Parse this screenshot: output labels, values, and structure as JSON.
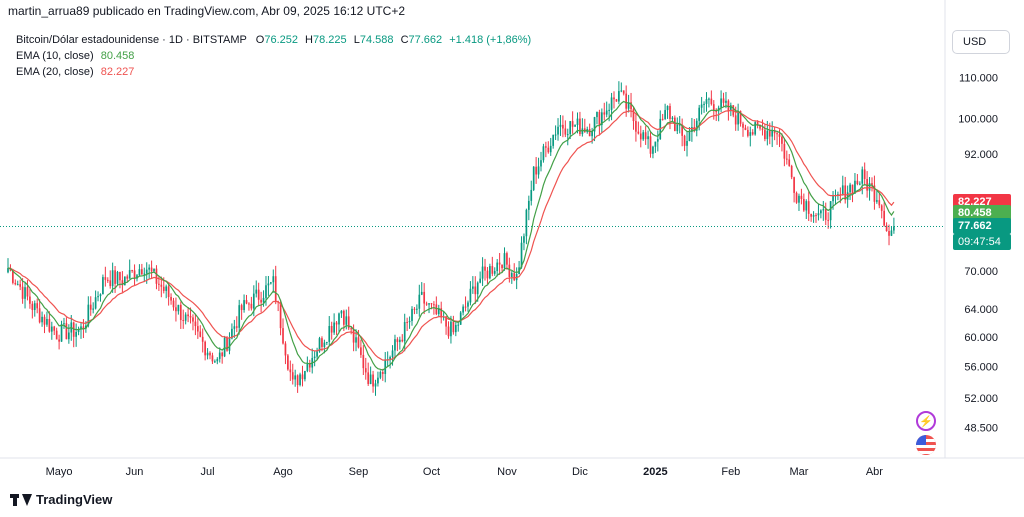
{
  "header": {
    "publisher": "martin_arrua89 publicado en TradingView.com, Abr 09, 2025 16:12 UTC+2"
  },
  "legend": {
    "symbol": "Bitcoin/Dólar estadounidense · 1D · BITSTAMP",
    "open_label": "O",
    "open": "76.252",
    "high_label": "H",
    "high": "78.225",
    "low_label": "L",
    "low": "74.588",
    "close_label": "C",
    "close": "77.662",
    "change": "+1.418 (+1,86%)",
    "ema10_label": "EMA (10, close)",
    "ema10_value": "80.458",
    "ema20_label": "EMA (20, close)",
    "ema20_value": "82.227"
  },
  "currency_button": "USD",
  "price_tags": {
    "ema20": "82.227",
    "ema10": "80.458",
    "last": "77.662",
    "countdown": "09:47:54"
  },
  "footer": {
    "brand": "TradingView"
  },
  "colors": {
    "up": "#089981",
    "down": "#f23645",
    "ema10": "#43a047",
    "ema20": "#ef5350",
    "ema20_tag": "#f23645",
    "ema10_tag": "#4caf50",
    "last_tag": "#089981"
  },
  "icons": {
    "flash": "flash-icon",
    "flag": "us-flag-icon",
    "logo": "tradingview-logo-icon"
  },
  "chart_data": {
    "type": "candlestick",
    "scale": "log",
    "y_ticks": [
      110000,
      100000,
      92000,
      70000,
      64000,
      60000,
      56000,
      52000,
      48500
    ],
    "y_tick_labels": [
      "110.000",
      "100.000",
      "92.000",
      "70.000",
      "64.000",
      "60.000",
      "56.000",
      "52.000",
      "48.500"
    ],
    "ylim": [
      45500,
      116000
    ],
    "x_labels": [
      "Mayo",
      "Jun",
      "Jul",
      "Ago",
      "Sep",
      "Oct",
      "Nov",
      "Dic",
      "2025",
      "Feb",
      "Mar",
      "Abr"
    ],
    "x_label_dates": [
      "2024-05-01",
      "2024-06-01",
      "2024-07-01",
      "2024-08-01",
      "2024-09-01",
      "2024-10-01",
      "2024-11-01",
      "2024-12-01",
      "2025-01-01",
      "2025-02-01",
      "2025-03-01",
      "2025-04-01"
    ],
    "xlim": [
      "2024-04-10",
      "2025-04-30"
    ],
    "last_date": "2025-04-09",
    "last_price": 77662,
    "ema10_last": 80458,
    "ema20_last": 82227,
    "closes_approx": [
      [
        "2024-04-10",
        70500
      ],
      [
        "2024-04-20",
        64500
      ],
      [
        "2024-04-30",
        60500
      ],
      [
        "2024-05-10",
        61000
      ],
      [
        "2024-05-20",
        69000
      ],
      [
        "2024-05-27",
        68500
      ],
      [
        "2024-06-05",
        71000
      ],
      [
        "2024-06-15",
        66000
      ],
      [
        "2024-06-25",
        61000
      ],
      [
        "2024-07-05",
        56500
      ],
      [
        "2024-07-15",
        64000
      ],
      [
        "2024-07-28",
        68000
      ],
      [
        "2024-08-05",
        53500
      ],
      [
        "2024-08-15",
        58500
      ],
      [
        "2024-08-25",
        64000
      ],
      [
        "2024-09-06",
        54000
      ],
      [
        "2024-09-15",
        58000
      ],
      [
        "2024-09-27",
        65500
      ],
      [
        "2024-10-10",
        60500
      ],
      [
        "2024-10-20",
        68500
      ],
      [
        "2024-10-30",
        72000
      ],
      [
        "2024-11-05",
        69000
      ],
      [
        "2024-11-12",
        88000
      ],
      [
        "2024-11-22",
        98500
      ],
      [
        "2024-12-05",
        98000
      ],
      [
        "2024-12-17",
        106000
      ],
      [
        "2024-12-30",
        93000
      ],
      [
        "2025-01-06",
        102000
      ],
      [
        "2025-01-13",
        94500
      ],
      [
        "2025-01-22",
        104500
      ],
      [
        "2025-01-31",
        102000
      ],
      [
        "2025-02-10",
        97000
      ],
      [
        "2025-02-20",
        97500
      ],
      [
        "2025-02-28",
        84000
      ],
      [
        "2025-03-10",
        79000
      ],
      [
        "2025-03-20",
        84500
      ],
      [
        "2025-03-27",
        87000
      ],
      [
        "2025-04-03",
        83000
      ],
      [
        "2025-04-07",
        76000
      ],
      [
        "2025-04-09",
        77662
      ]
    ]
  }
}
